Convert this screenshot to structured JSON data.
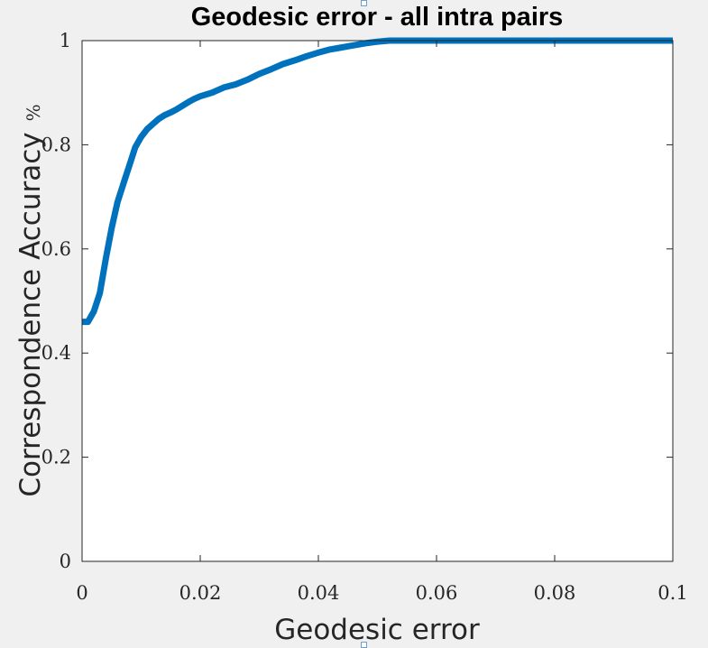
{
  "chart_data": {
    "type": "line",
    "title": "Geodesic error - all intra pairs",
    "xlabel": "Geodesic error",
    "ylabel": "Correspondence Accuracy",
    "ylabel_unit": "%",
    "xlim": [
      0,
      0.1
    ],
    "ylim": [
      0,
      1
    ],
    "xticks": [
      0,
      0.02,
      0.04,
      0.06,
      0.08,
      0.1
    ],
    "xtick_labels": [
      "0",
      "0.02",
      "0.04",
      "0.06",
      "0.08",
      "0.1"
    ],
    "yticks": [
      0,
      0.2,
      0.4,
      0.6,
      0.8,
      1
    ],
    "ytick_labels": [
      "0",
      "0.2",
      "0.4",
      "0.6",
      "0.8",
      "1"
    ],
    "grid": false,
    "line_color": "#0072bd",
    "series": [
      {
        "x": [
          0,
          0.001,
          0.002,
          0.003,
          0.004,
          0.005,
          0.006,
          0.007,
          0.008,
          0.009,
          0.01,
          0.011,
          0.012,
          0.013,
          0.014,
          0.015,
          0.016,
          0.017,
          0.018,
          0.019,
          0.02,
          0.022,
          0.024,
          0.026,
          0.028,
          0.03,
          0.032,
          0.034,
          0.036,
          0.038,
          0.04,
          0.042,
          0.044,
          0.046,
          0.048,
          0.05,
          0.052,
          0.055,
          0.06,
          0.07,
          0.08,
          0.09,
          0.1
        ],
        "y": [
          0.46,
          0.46,
          0.48,
          0.515,
          0.58,
          0.64,
          0.69,
          0.725,
          0.76,
          0.795,
          0.815,
          0.83,
          0.84,
          0.85,
          0.857,
          0.862,
          0.868,
          0.875,
          0.882,
          0.888,
          0.893,
          0.9,
          0.91,
          0.916,
          0.925,
          0.936,
          0.945,
          0.955,
          0.962,
          0.97,
          0.977,
          0.983,
          0.987,
          0.991,
          0.995,
          0.998,
          1.0,
          1.0,
          1.0,
          1.0,
          1.0,
          1.0,
          1.0
        ]
      }
    ]
  }
}
